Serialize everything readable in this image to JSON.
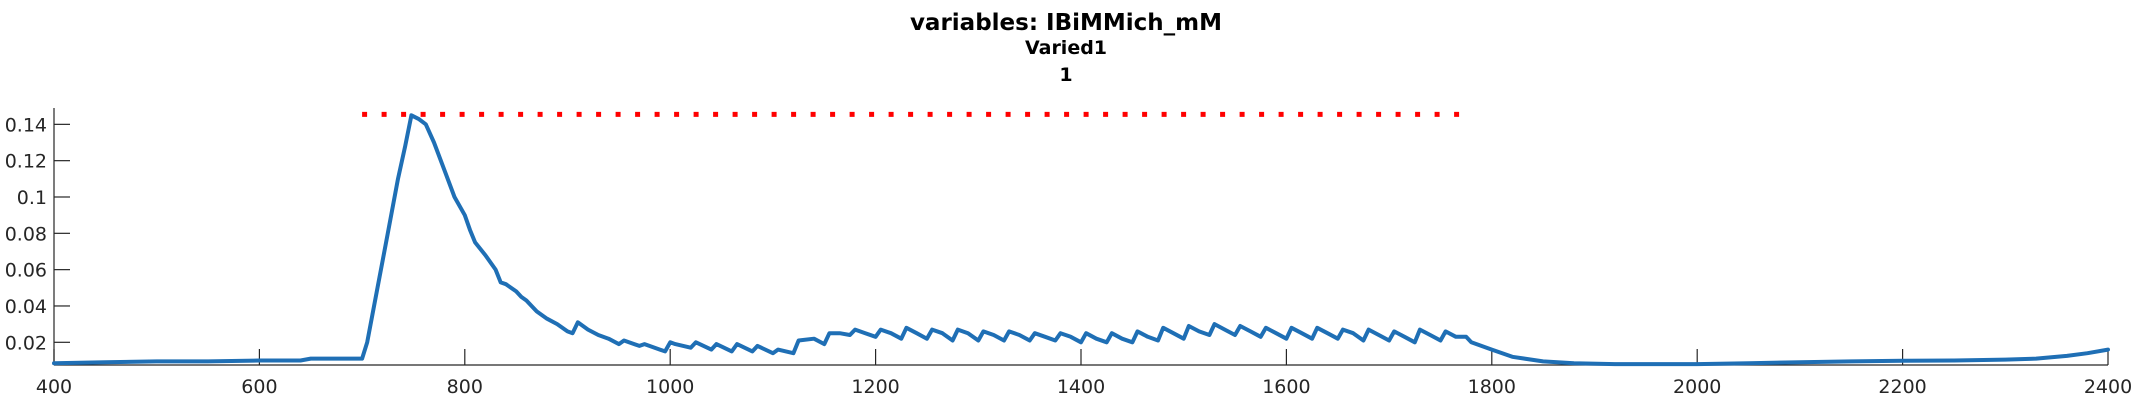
{
  "chart_data": {
    "type": "line",
    "title": "variables: IBiMMich_mM",
    "subtitle_lines": [
      "Varied1",
      "1"
    ],
    "xlabel": "",
    "ylabel": "",
    "xlim": [
      400,
      2400
    ],
    "ylim": [
      0.0075,
      0.149
    ],
    "x_ticks": [
      400,
      600,
      800,
      1000,
      1200,
      1400,
      1600,
      1800,
      2000,
      2200,
      2400
    ],
    "x_tick_labels": [
      "400",
      "600",
      "800",
      "1000",
      "1200",
      "1400",
      "1600",
      "1800",
      "2000",
      "2200",
      "2400"
    ],
    "y_ticks": [
      0.02,
      0.04,
      0.06,
      0.08,
      0.1,
      0.12,
      0.14
    ],
    "y_tick_labels": [
      "0.02",
      "0.04",
      "0.06",
      "0.08",
      "0.1",
      "0.12",
      "0.14"
    ],
    "grid": false,
    "series": [
      {
        "color": "#1f6fb5",
        "style": "solid",
        "x": [
          400,
          450,
          500,
          550,
          600,
          640,
          650,
          680,
          700,
          705,
          715,
          725,
          735,
          742,
          748,
          755,
          762,
          770,
          780,
          790,
          800,
          805,
          810,
          820,
          830,
          835,
          840,
          850,
          855,
          860,
          870,
          880,
          890,
          900,
          905,
          910,
          920,
          930,
          940,
          950,
          955,
          970,
          975,
          990,
          995,
          1000,
          1005,
          1020,
          1025,
          1040,
          1045,
          1060,
          1065,
          1080,
          1085,
          1100,
          1105,
          1120,
          1125,
          1140,
          1150,
          1155,
          1165,
          1175,
          1180,
          1190,
          1200,
          1205,
          1215,
          1225,
          1230,
          1240,
          1250,
          1255,
          1265,
          1275,
          1280,
          1290,
          1300,
          1305,
          1315,
          1325,
          1330,
          1340,
          1350,
          1355,
          1365,
          1375,
          1380,
          1390,
          1400,
          1405,
          1415,
          1425,
          1430,
          1440,
          1450,
          1455,
          1465,
          1475,
          1480,
          1490,
          1500,
          1505,
          1515,
          1525,
          1530,
          1540,
          1550,
          1555,
          1565,
          1575,
          1580,
          1590,
          1600,
          1605,
          1615,
          1625,
          1630,
          1640,
          1650,
          1655,
          1665,
          1675,
          1680,
          1690,
          1700,
          1705,
          1715,
          1725,
          1730,
          1740,
          1750,
          1755,
          1765,
          1775,
          1780,
          1800,
          1820,
          1850,
          1880,
          1920,
          1960,
          2000,
          2050,
          2100,
          2150,
          2200,
          2250,
          2300,
          2330,
          2360,
          2380,
          2400
        ],
        "y": [
          0.0085,
          0.009,
          0.0095,
          0.0095,
          0.01,
          0.01,
          0.011,
          0.011,
          0.011,
          0.02,
          0.05,
          0.08,
          0.11,
          0.128,
          0.145,
          0.143,
          0.14,
          0.13,
          0.115,
          0.1,
          0.09,
          0.082,
          0.075,
          0.068,
          0.06,
          0.053,
          0.052,
          0.048,
          0.045,
          0.043,
          0.037,
          0.033,
          0.03,
          0.026,
          0.025,
          0.031,
          0.027,
          0.024,
          0.022,
          0.019,
          0.021,
          0.018,
          0.019,
          0.016,
          0.015,
          0.02,
          0.019,
          0.017,
          0.02,
          0.016,
          0.019,
          0.015,
          0.019,
          0.015,
          0.018,
          0.014,
          0.016,
          0.014,
          0.021,
          0.022,
          0.019,
          0.025,
          0.025,
          0.024,
          0.027,
          0.025,
          0.023,
          0.027,
          0.025,
          0.022,
          0.028,
          0.025,
          0.022,
          0.027,
          0.025,
          0.021,
          0.027,
          0.025,
          0.021,
          0.026,
          0.024,
          0.021,
          0.026,
          0.024,
          0.021,
          0.025,
          0.023,
          0.021,
          0.025,
          0.023,
          0.02,
          0.025,
          0.022,
          0.02,
          0.025,
          0.022,
          0.02,
          0.026,
          0.023,
          0.021,
          0.028,
          0.025,
          0.022,
          0.029,
          0.026,
          0.024,
          0.03,
          0.027,
          0.024,
          0.029,
          0.026,
          0.023,
          0.028,
          0.025,
          0.022,
          0.028,
          0.025,
          0.022,
          0.028,
          0.025,
          0.022,
          0.027,
          0.025,
          0.021,
          0.027,
          0.024,
          0.021,
          0.026,
          0.023,
          0.02,
          0.027,
          0.024,
          0.021,
          0.026,
          0.023,
          0.023,
          0.02,
          0.016,
          0.012,
          0.0095,
          0.0085,
          0.008,
          0.008,
          0.008,
          0.0085,
          0.009,
          0.0095,
          0.0098,
          0.01,
          0.0105,
          0.011,
          0.0125,
          0.014,
          0.016
        ]
      },
      {
        "color": "#ff0000",
        "style": "dotted",
        "x": [
          700,
          1780
        ],
        "y": [
          0.1455,
          0.1455
        ]
      }
    ],
    "colors": {
      "axis": "#262626",
      "background": "#ffffff"
    }
  }
}
